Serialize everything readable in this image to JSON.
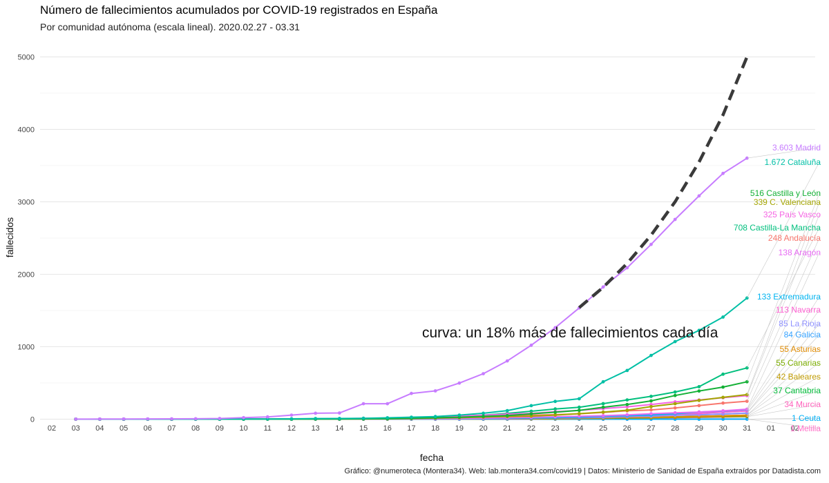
{
  "title": "Número de fallecimientos acumulados por COVID-19 registrados en España",
  "subtitle": "Por comunidad autónoma (escala lineal). 2020.02.27 - 03.31",
  "caption": "Gráfico: @numeroteca (Montera34). Web: lab.montera34.com/covid19 | Datos: Ministerio de Sanidad de España extraídos por Datadista.com",
  "chart_data": {
    "type": "line",
    "xlabel": "fecha",
    "ylabel": "fallecidos",
    "x_tick_labels": [
      "02",
      "03",
      "04",
      "05",
      "06",
      "07",
      "08",
      "09",
      "10",
      "11",
      "12",
      "13",
      "14",
      "15",
      "16",
      "17",
      "18",
      "19",
      "20",
      "21",
      "22",
      "23",
      "24",
      "25",
      "26",
      "27",
      "28",
      "29",
      "30",
      "31",
      "01",
      "02"
    ],
    "x_range": [
      "2020-03-02",
      "2020-04-02"
    ],
    "y_range": [
      -150,
      5150
    ],
    "y_ticks": [
      0,
      1000,
      2000,
      3000,
      4000,
      5000
    ],
    "grid": true,
    "annotation": "curva: un 18% más de fallecimientos cada día",
    "trend_curve": {
      "name": "curva: un 18% más de fallecimientos cada día",
      "style": "dashed",
      "color": "#3a3a3a",
      "x": [
        "2020-03-24",
        "2020-03-25",
        "2020-03-26",
        "2020-03-27",
        "2020-03-28",
        "2020-03-29",
        "2020-03-30",
        "2020-03-31"
      ],
      "values": [
        1540,
        1820,
        2150,
        2540,
        3000,
        3550,
        4200,
        5000
      ]
    },
    "x_dates": [
      "2020-03-03",
      "2020-03-04",
      "2020-03-05",
      "2020-03-06",
      "2020-03-07",
      "2020-03-08",
      "2020-03-09",
      "2020-03-10",
      "2020-03-11",
      "2020-03-12",
      "2020-03-13",
      "2020-03-14",
      "2020-03-15",
      "2020-03-16",
      "2020-03-17",
      "2020-03-18",
      "2020-03-19",
      "2020-03-20",
      "2020-03-21",
      "2020-03-22",
      "2020-03-23",
      "2020-03-24",
      "2020-03-25",
      "2020-03-26",
      "2020-03-27",
      "2020-03-28",
      "2020-03-29",
      "2020-03-30",
      "2020-03-31"
    ],
    "series": [
      {
        "name": "Madrid",
        "label": "3.603 Madrid",
        "color": "#c77cff",
        "values": [
          1,
          2,
          3,
          4,
          5,
          6,
          10,
          21,
          31,
          56,
          82,
          86,
          213,
          213,
          355,
          390,
          498,
          628,
          804,
          1021,
          1263,
          1535,
          1825,
          2090,
          2412,
          2757,
          3082,
          3392,
          3603
        ]
      },
      {
        "name": "Cataluña",
        "label": "1.672 Cataluña",
        "color": "#00bfa5",
        "values": [
          0,
          0,
          0,
          0,
          0,
          0,
          1,
          2,
          3,
          5,
          9,
          10,
          12,
          19,
          28,
          36,
          56,
          82,
          118,
          187,
          245,
          282,
          516,
          672,
          880,
          1070,
          1226,
          1410,
          1672
        ]
      },
      {
        "name": "Castilla y León",
        "label": "516 Castilla y León",
        "color": "#13b035",
        "values": [
          0,
          0,
          0,
          0,
          0,
          0,
          0,
          0,
          1,
          1,
          2,
          3,
          5,
          8,
          12,
          20,
          28,
          39,
          50,
          73,
          96,
          122,
          165,
          202,
          252,
          327,
          389,
          443,
          516
        ]
      },
      {
        "name": "C. Valenciana",
        "label": "339 C. Valenciana",
        "color": "#a3a500",
        "values": [
          0,
          0,
          0,
          0,
          0,
          0,
          0,
          0,
          1,
          1,
          2,
          2,
          3,
          5,
          9,
          14,
          20,
          29,
          35,
          42,
          56,
          76,
          97,
          124,
          173,
          213,
          259,
          301,
          339
        ]
      },
      {
        "name": "País Vasco",
        "label": "325 País Vasco",
        "color": "#f564e3",
        "values": [
          0,
          0,
          0,
          0,
          0,
          0,
          1,
          2,
          3,
          4,
          6,
          8,
          11,
          15,
          21,
          30,
          42,
          54,
          69,
          80,
          104,
          122,
          146,
          170,
          203,
          239,
          265,
          296,
          325
        ]
      },
      {
        "name": "Castilla-La Mancha",
        "label": "708 Castilla-La Mancha",
        "color": "#00bf7d",
        "values": [
          0,
          0,
          0,
          0,
          0,
          0,
          0,
          0,
          1,
          1,
          3,
          5,
          9,
          14,
          20,
          26,
          41,
          56,
          80,
          110,
          141,
          165,
          214,
          266,
          315,
          375,
          449,
          621,
          708
        ]
      },
      {
        "name": "Andalucía",
        "label": "248 Andalucía",
        "color": "#f8766d",
        "values": [
          0,
          0,
          0,
          0,
          0,
          0,
          1,
          1,
          1,
          1,
          2,
          3,
          5,
          9,
          12,
          17,
          22,
          30,
          40,
          55,
          63,
          74,
          93,
          115,
          128,
          155,
          188,
          222,
          248
        ]
      },
      {
        "name": "Aragón",
        "label": "138 Aragón",
        "color": "#e76bf3",
        "values": [
          0,
          0,
          0,
          0,
          0,
          0,
          0,
          0,
          1,
          1,
          1,
          2,
          3,
          4,
          5,
          7,
          9,
          14,
          19,
          26,
          33,
          41,
          49,
          60,
          75,
          88,
          99,
          115,
          138
        ]
      },
      {
        "name": "Extremadura",
        "label": "133 Extremadura",
        "color": "#00b4f0",
        "values": [
          0,
          0,
          0,
          0,
          0,
          0,
          0,
          0,
          0,
          0,
          0,
          0,
          1,
          2,
          2,
          3,
          5,
          10,
          13,
          17,
          20,
          29,
          40,
          48,
          58,
          75,
          98,
          112,
          133
        ]
      },
      {
        "name": "Navarra",
        "label": "113 Navarra",
        "color": "#fd61d1",
        "values": [
          0,
          0,
          0,
          0,
          0,
          0,
          0,
          0,
          0,
          0,
          0,
          1,
          1,
          2,
          3,
          3,
          5,
          8,
          10,
          14,
          18,
          25,
          34,
          44,
          56,
          70,
          80,
          98,
          113
        ]
      },
      {
        "name": "La Rioja",
        "label": "85 La Rioja",
        "color": "#8f91ff",
        "values": [
          0,
          0,
          0,
          0,
          0,
          0,
          0,
          1,
          1,
          2,
          2,
          3,
          4,
          5,
          6,
          8,
          9,
          12,
          13,
          15,
          19,
          25,
          29,
          36,
          42,
          55,
          61,
          71,
          85
        ]
      },
      {
        "name": "Galicia",
        "label": "84 Galicia",
        "color": "#35a2ff",
        "values": [
          0,
          0,
          0,
          0,
          0,
          0,
          0,
          0,
          0,
          0,
          0,
          1,
          1,
          1,
          1,
          2,
          3,
          5,
          7,
          11,
          16,
          19,
          25,
          34,
          42,
          54,
          62,
          71,
          84
        ]
      },
      {
        "name": "Asturias",
        "label": "55 Asturias",
        "color": "#e08b00",
        "values": [
          0,
          0,
          0,
          0,
          0,
          0,
          0,
          0,
          0,
          0,
          0,
          1,
          1,
          1,
          1,
          2,
          3,
          5,
          8,
          10,
          12,
          14,
          19,
          22,
          28,
          33,
          40,
          48,
          55
        ]
      },
      {
        "name": "Canarias",
        "label": "55 Canarias",
        "color": "#7cae00",
        "values": [
          0,
          0,
          0,
          0,
          0,
          0,
          0,
          0,
          0,
          1,
          1,
          1,
          1,
          1,
          1,
          2,
          4,
          5,
          6,
          8,
          12,
          15,
          17,
          21,
          27,
          31,
          38,
          46,
          55
        ]
      },
      {
        "name": "Baleares",
        "label": "42 Baleares",
        "color": "#c09b00",
        "values": [
          0,
          0,
          0,
          0,
          0,
          0,
          0,
          0,
          0,
          0,
          0,
          0,
          1,
          1,
          2,
          2,
          3,
          4,
          5,
          5,
          8,
          11,
          14,
          19,
          22,
          26,
          31,
          36,
          42
        ]
      },
      {
        "name": "Cantabria",
        "label": "37 Cantabria",
        "color": "#00ba38",
        "values": [
          0,
          0,
          0,
          0,
          0,
          0,
          0,
          0,
          0,
          0,
          0,
          0,
          0,
          0,
          1,
          2,
          2,
          3,
          4,
          5,
          7,
          10,
          12,
          15,
          19,
          25,
          30,
          33,
          37
        ]
      },
      {
        "name": "Murcia",
        "label": "34 Murcia",
        "color": "#ff62bc",
        "values": [
          0,
          0,
          0,
          0,
          0,
          0,
          0,
          0,
          0,
          0,
          0,
          0,
          0,
          1,
          1,
          1,
          2,
          2,
          3,
          3,
          5,
          7,
          10,
          14,
          17,
          20,
          25,
          30,
          34
        ]
      },
      {
        "name": "Ceuta",
        "label": "1 Ceuta",
        "color": "#00b0f6",
        "values": [
          0,
          0,
          0,
          0,
          0,
          0,
          0,
          0,
          0,
          0,
          0,
          0,
          0,
          0,
          0,
          0,
          0,
          0,
          0,
          0,
          0,
          0,
          0,
          0,
          0,
          0,
          0,
          1,
          1
        ]
      },
      {
        "name": "Melilla",
        "label": "1 Melilla",
        "color": "#ff6ec7",
        "values": [
          0,
          0,
          0,
          0,
          0,
          0,
          0,
          0,
          0,
          0,
          0,
          0,
          0,
          0,
          0,
          0,
          0,
          0,
          0,
          0,
          0,
          0,
          0,
          0,
          0,
          1,
          1,
          1,
          1
        ]
      }
    ],
    "end_labels": [
      {
        "series": "Madrid",
        "y": 218
      },
      {
        "series": "Cataluña",
        "y": 239
      },
      {
        "series": "Castilla y León",
        "y": 284
      },
      {
        "series": "C. Valenciana",
        "y": 297
      },
      {
        "series": "País Vasco",
        "y": 315
      },
      {
        "series": "Castilla-La Mancha",
        "y": 334
      },
      {
        "series": "Andalucía",
        "y": 349
      },
      {
        "series": "Aragón",
        "y": 370
      },
      {
        "series": "Extremadura",
        "y": 434
      },
      {
        "series": "Navarra",
        "y": 453
      },
      {
        "series": "La Rioja",
        "y": 473
      },
      {
        "series": "Galicia",
        "y": 489
      },
      {
        "series": "Asturias",
        "y": 510
      },
      {
        "series": "Canarias",
        "y": 530
      },
      {
        "series": "Baleares",
        "y": 550
      },
      {
        "series": "Cantabria",
        "y": 570
      },
      {
        "series": "Murcia",
        "y": 590
      },
      {
        "series": "Ceuta",
        "y": 610
      },
      {
        "series": "Melilla",
        "y": 625
      }
    ]
  }
}
